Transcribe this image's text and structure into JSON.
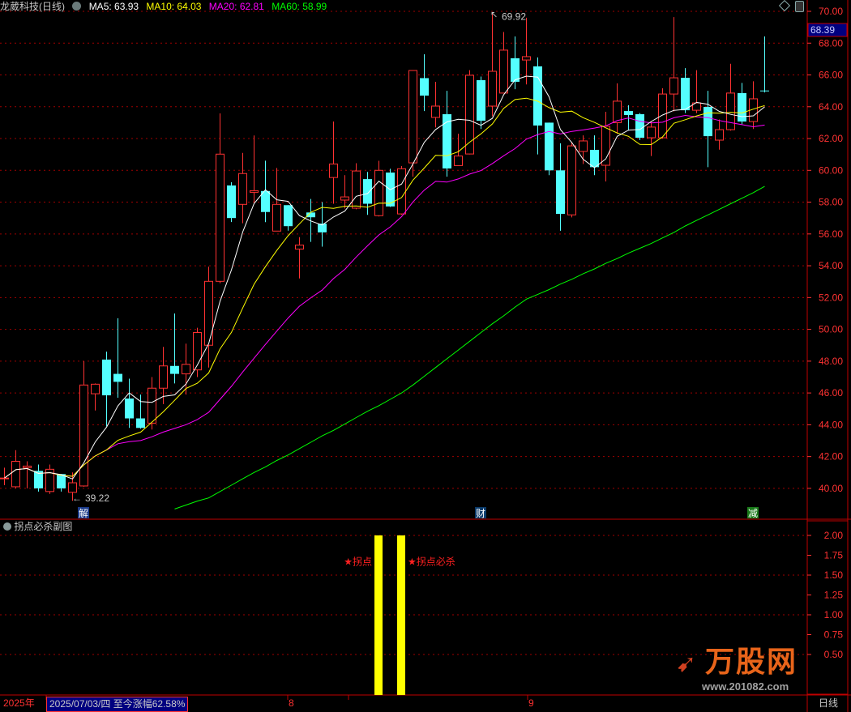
{
  "header": {
    "title": "龙葳科技(日线)",
    "ma5": "MA5: 63.93",
    "ma10": "MA10: 64.03",
    "ma20": "MA20: 62.81",
    "ma60": "MA60: 58.99"
  },
  "colors": {
    "up": "#ff3232",
    "down": "#54ffff",
    "ma5": "#ffffff",
    "ma10": "#ffff00",
    "ma20": "#ff00ff",
    "ma60": "#00ff00",
    "grid": "#a00000",
    "axis": "#ff3232",
    "bar": "#ffff00",
    "price_tag_bg": "#000080"
  },
  "chart_data": [
    {
      "type": "candlestick",
      "ylim": [
        38.5,
        70.6
      ],
      "y_ticks": [
        "70.00",
        "68.00",
        "66.00",
        "64.00",
        "62.00",
        "60.00",
        "58.00",
        "56.00",
        "54.00",
        "52.00",
        "50.00",
        "48.00",
        "46.00",
        "44.00",
        "42.00",
        "40.00"
      ],
      "current_price": "68.39",
      "high_label": "69.92",
      "low_label": "39.22",
      "ohlc": [
        [
          40.6,
          41.3,
          40.2,
          40.65
        ],
        [
          40.1,
          42.4,
          40.0,
          41.7
        ],
        [
          41.3,
          41.7,
          40.0,
          41.4
        ],
        [
          41.1,
          41.5,
          39.8,
          40.0
        ],
        [
          39.8,
          41.5,
          39.65,
          41.2
        ],
        [
          40.9,
          40.9,
          39.8,
          40.0
        ],
        [
          39.75,
          41.0,
          39.22,
          40.35
        ],
        [
          40.15,
          48.0,
          40.1,
          46.5
        ],
        [
          45.95,
          46.6,
          44.9,
          46.55
        ],
        [
          48.1,
          48.6,
          43.9,
          45.85
        ],
        [
          47.2,
          50.7,
          45.7,
          46.7
        ],
        [
          45.65,
          46.9,
          43.8,
          44.4
        ],
        [
          44.4,
          45.9,
          43.75,
          43.8
        ],
        [
          44.1,
          47.0,
          43.7,
          46.3
        ],
        [
          46.3,
          48.9,
          45.3,
          47.7
        ],
        [
          47.7,
          51.0,
          46.6,
          47.2
        ],
        [
          47.2,
          49.1,
          45.9,
          47.8
        ],
        [
          47.45,
          50.1,
          47.0,
          49.8
        ],
        [
          49.0,
          53.94,
          47.6,
          53.02
        ],
        [
          53.02,
          63.58,
          52.9,
          61.02
        ],
        [
          59.05,
          59.25,
          56.75,
          57.0
        ],
        [
          57.86,
          61.1,
          56.67,
          59.8
        ],
        [
          58.62,
          62.19,
          57.98,
          58.72
        ],
        [
          58.7,
          60.61,
          56.74,
          57.38
        ],
        [
          56.18,
          60.15,
          56.18,
          57.86
        ],
        [
          57.81,
          57.81,
          56.21,
          56.49
        ],
        [
          55.05,
          55.8,
          53.2,
          55.3
        ],
        [
          57.35,
          58.2,
          55.5,
          57.05
        ],
        [
          56.65,
          58.0,
          55.2,
          56.1
        ],
        [
          59.55,
          63.07,
          57.9,
          60.4
        ],
        [
          58.13,
          59.7,
          57.6,
          58.33
        ],
        [
          57.62,
          60.45,
          57.55,
          59.96
        ],
        [
          59.45,
          59.9,
          57.2,
          57.9
        ],
        [
          57.15,
          60.6,
          57.1,
          60.0
        ],
        [
          59.86,
          60.1,
          57.7,
          57.73
        ],
        [
          57.26,
          60.27,
          57.2,
          60.1
        ],
        [
          60.47,
          66.3,
          59.6,
          66.28
        ],
        [
          65.8,
          67.3,
          63.73,
          64.7
        ],
        [
          63.33,
          65.57,
          62.7,
          64.04
        ],
        [
          63.53,
          65.0,
          59.6,
          60.12
        ],
        [
          60.3,
          62.3,
          60.3,
          60.9
        ],
        [
          61.03,
          66.3,
          61.0,
          65.98
        ],
        [
          65.67,
          65.9,
          62.6,
          63.12
        ],
        [
          64.04,
          69.92,
          63.4,
          66.23
        ],
        [
          64.86,
          68.7,
          64.86,
          67.56
        ],
        [
          67.05,
          68.42,
          65.1,
          65.57
        ],
        [
          66.94,
          69.6,
          65.4,
          67.15
        ],
        [
          66.54,
          67.1,
          61.0,
          62.82
        ],
        [
          63.0,
          63.0,
          59.7,
          60.0
        ],
        [
          60.0,
          61.7,
          56.2,
          57.26
        ],
        [
          57.2,
          61.8,
          57.04,
          61.54
        ],
        [
          61.19,
          62.2,
          60.4,
          61.85
        ],
        [
          61.29,
          62.2,
          59.7,
          60.2
        ],
        [
          60.32,
          63.68,
          59.3,
          62.77
        ],
        [
          63.0,
          65.47,
          62.3,
          64.35
        ],
        [
          63.73,
          64.1,
          62.5,
          63.48
        ],
        [
          63.53,
          63.6,
          61.9,
          62.05
        ],
        [
          62.05,
          63.1,
          60.9,
          62.72
        ],
        [
          62.05,
          65.16,
          62.0,
          64.8
        ],
        [
          64.8,
          69.64,
          63.7,
          65.82
        ],
        [
          65.82,
          66.43,
          63.6,
          63.78
        ],
        [
          63.78,
          66.3,
          63.6,
          64.24
        ],
        [
          63.99,
          65.0,
          60.2,
          62.15
        ],
        [
          61.9,
          63.2,
          61.3,
          62.56
        ],
        [
          62.56,
          66.7,
          62.5,
          64.86
        ],
        [
          64.86,
          65.5,
          62.9,
          63.07
        ],
        [
          63.07,
          65.6,
          62.6,
          64.5
        ],
        [
          65.02,
          68.42,
          64.9,
          64.98
        ]
      ],
      "ma60": [
        null,
        null,
        null,
        null,
        null,
        null,
        null,
        null,
        null,
        null,
        null,
        null,
        null,
        null,
        null,
        38.7,
        38.95,
        39.2,
        39.4,
        39.8,
        40.2,
        40.6,
        41.0,
        41.35,
        41.75,
        42.1,
        42.5,
        42.9,
        43.3,
        43.65,
        44.05,
        44.45,
        44.85,
        45.2,
        45.6,
        46.0,
        46.5,
        47.05,
        47.6,
        48.15,
        48.7,
        49.25,
        49.8,
        50.35,
        50.85,
        51.4,
        51.9,
        52.2,
        52.5,
        52.85,
        53.15,
        53.5,
        53.8,
        54.15,
        54.45,
        54.8,
        55.1,
        55.4,
        55.75,
        56.1,
        56.5,
        56.85,
        57.2,
        57.55,
        57.9,
        58.25,
        58.6,
        58.99
      ],
      "event_markers": [
        {
          "index": 7,
          "label": "解",
          "color": "#1a3a8a"
        },
        {
          "index": 42,
          "label": "财",
          "color": "#0a3a6a"
        },
        {
          "index": 66,
          "label": "减",
          "color": "#1a7a1a"
        }
      ]
    },
    {
      "type": "bar",
      "title": "拐点必杀副图",
      "ylim": [
        0,
        2.2
      ],
      "y_ticks": [
        "2.00",
        "1.75",
        "1.50",
        "1.25",
        "1.00",
        "0.75",
        "0.50"
      ],
      "bars": [
        {
          "index": 33,
          "value": 2.0
        },
        {
          "index": 35,
          "value": 2.0
        }
      ],
      "annotations": [
        {
          "index": 33,
          "value": 1.67,
          "text": "★拐点"
        },
        {
          "index": 35,
          "value": 1.67,
          "text": "★拐点必杀"
        }
      ]
    }
  ],
  "bottom_bar": {
    "year": "2025年",
    "info": "2025/07/03/四 至今涨幅62.58%",
    "month_aug": "8",
    "month_sep": "9",
    "period": "日线"
  },
  "logo": {
    "text": "万股网",
    "url": "www.201082.com"
  }
}
